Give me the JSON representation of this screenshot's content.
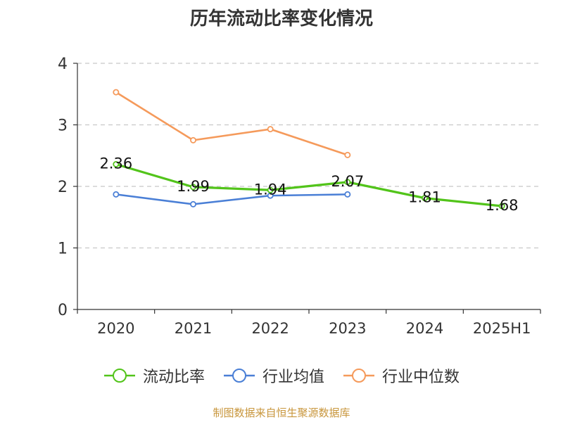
{
  "source_note": "制图数据来自恒生聚源数据库",
  "chart_data": {
    "type": "line",
    "title": "历年流动比率变化情况",
    "categories": [
      "2020",
      "2021",
      "2022",
      "2023",
      "2024",
      "2025H1"
    ],
    "ylim": [
      0,
      4
    ],
    "yticks": [
      "0",
      "1",
      "2",
      "3",
      "4"
    ],
    "grid": true,
    "legend_position": "bottom",
    "series": [
      {
        "name": "流动比率",
        "color": "#52c41a",
        "values": [
          2.36,
          1.99,
          1.94,
          2.07,
          1.81,
          1.68
        ],
        "labels": [
          "2.36",
          "1.99",
          "1.94",
          "2.07",
          "1.81",
          "1.68"
        ]
      },
      {
        "name": "行业均值",
        "color": "#4a7fd6",
        "values": [
          1.87,
          1.71,
          1.85,
          1.87,
          null,
          null
        ]
      },
      {
        "name": "行业中位数",
        "color": "#f59a5b",
        "values": [
          3.53,
          2.75,
          2.93,
          2.51,
          null,
          null
        ]
      }
    ]
  }
}
